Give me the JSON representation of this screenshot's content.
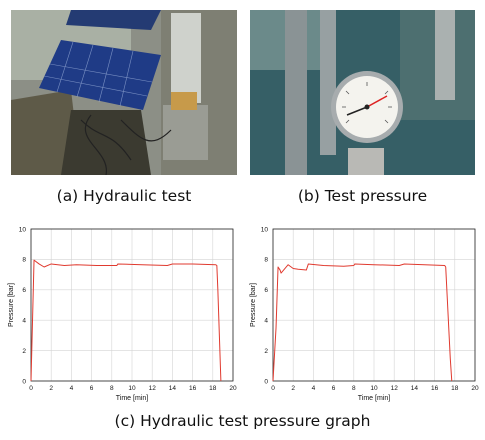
{
  "captions": {
    "a": "(a) Hydraulic test",
    "b": "(b) Test pressure",
    "c": "(c) Hydraulic test pressure graph"
  },
  "photos": {
    "a_subject": "solar panels on rooftop",
    "b_subject": "pressure gauge"
  },
  "chart_data": [
    {
      "type": "line",
      "xlabel": "Time [min]",
      "ylabel": "Pressure [bar]",
      "xlim": [
        0,
        20
      ],
      "ylim": [
        0,
        10
      ],
      "xticks": [
        0,
        2,
        4,
        6,
        8,
        10,
        12,
        14,
        16,
        18,
        20
      ],
      "yticks": [
        0,
        2,
        4,
        6,
        8,
        10
      ],
      "grid": true,
      "line_color": "#e03a2f",
      "x": [
        0,
        0.3,
        0.8,
        1.3,
        2.0,
        3.3,
        4.5,
        6.5,
        8.5,
        8.6,
        11.0,
        13.5,
        14.0,
        16.0,
        18.3,
        18.4,
        18.5,
        18.6,
        18.7,
        18.8
      ],
      "y": [
        0,
        7.95,
        7.7,
        7.5,
        7.7,
        7.6,
        7.65,
        7.6,
        7.6,
        7.7,
        7.65,
        7.6,
        7.7,
        7.7,
        7.65,
        7.6,
        6.0,
        4.0,
        2.0,
        0
      ]
    },
    {
      "type": "line",
      "xlabel": "Time [min]",
      "ylabel": "Pressure [bar]",
      "xlim": [
        0,
        20
      ],
      "ylim": [
        0,
        10
      ],
      "xticks": [
        0,
        2,
        4,
        6,
        8,
        10,
        12,
        14,
        16,
        18,
        20
      ],
      "yticks": [
        0,
        2,
        4,
        6,
        8,
        10
      ],
      "grid": true,
      "line_color": "#e03a2f",
      "x": [
        0,
        0.3,
        0.5,
        0.7,
        0.8,
        1.5,
        2.0,
        2.5,
        3.3,
        3.5,
        5.0,
        7.0,
        8.0,
        8.1,
        10.0,
        12.5,
        13.0,
        15.0,
        17.0,
        17.1,
        17.25,
        17.4,
        17.55,
        17.7
      ],
      "y": [
        0,
        3.5,
        7.5,
        7.3,
        7.1,
        7.65,
        7.4,
        7.35,
        7.3,
        7.7,
        7.6,
        7.55,
        7.6,
        7.7,
        7.65,
        7.6,
        7.7,
        7.65,
        7.6,
        7.5,
        5.5,
        3.5,
        1.5,
        0
      ]
    }
  ]
}
